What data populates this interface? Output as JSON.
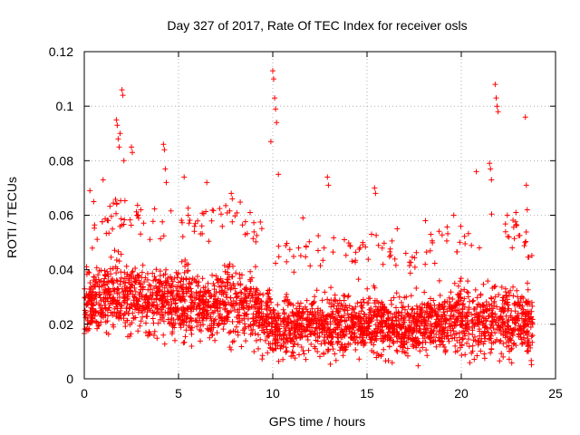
{
  "chart_data": {
    "type": "scatter",
    "title": "Day 327 of 2017, Rate Of TEC Index for receiver osls",
    "xlabel": "GPS time / hours",
    "ylabel": "ROTI / TECUs",
    "xlim": [
      0,
      25
    ],
    "ylim": [
      0,
      0.12
    ],
    "xticks": [
      0,
      5,
      10,
      15,
      20,
      25
    ],
    "yticks": [
      0,
      0.02,
      0.04,
      0.06,
      0.08,
      0.1,
      0.12
    ],
    "xtick_labels": [
      "0",
      "5",
      "10",
      "15",
      "20",
      "25"
    ],
    "ytick_labels": [
      "0",
      "0.02",
      "0.04",
      "0.06",
      "0.08",
      "0.1",
      "0.12"
    ],
    "grid": true,
    "marker": "+",
    "color": "#ff0000",
    "series": [
      {
        "name": "ROTI",
        "outliers": [
          [
            1.7,
            0.095
          ],
          [
            1.75,
            0.093
          ],
          [
            1.8,
            0.088
          ],
          [
            1.85,
            0.085
          ],
          [
            1.9,
            0.09
          ],
          [
            2.0,
            0.106
          ],
          [
            2.05,
            0.104
          ],
          [
            2.1,
            0.08
          ],
          [
            2.5,
            0.085
          ],
          [
            2.55,
            0.083
          ],
          [
            4.2,
            0.086
          ],
          [
            4.25,
            0.084
          ],
          [
            4.3,
            0.077
          ],
          [
            4.35,
            0.072
          ],
          [
            5.3,
            0.074
          ],
          [
            6.5,
            0.072
          ],
          [
            7.8,
            0.068
          ],
          [
            7.85,
            0.066
          ],
          [
            9.9,
            0.087
          ],
          [
            10.0,
            0.113
          ],
          [
            10.05,
            0.11
          ],
          [
            10.1,
            0.103
          ],
          [
            10.15,
            0.099
          ],
          [
            10.2,
            0.094
          ],
          [
            10.3,
            0.075
          ],
          [
            12.9,
            0.074
          ],
          [
            12.95,
            0.071
          ],
          [
            15.4,
            0.07
          ],
          [
            15.45,
            0.068
          ],
          [
            20.8,
            0.076
          ],
          [
            21.5,
            0.079
          ],
          [
            21.55,
            0.077
          ],
          [
            21.6,
            0.073
          ],
          [
            21.8,
            0.108
          ],
          [
            21.85,
            0.103
          ],
          [
            21.9,
            0.1
          ],
          [
            21.95,
            0.098
          ],
          [
            23.4,
            0.096
          ],
          [
            23.45,
            0.071
          ],
          [
            1.0,
            0.073
          ],
          [
            0.3,
            0.069
          ],
          [
            0.5,
            0.065
          ],
          [
            3.0,
            0.062
          ],
          [
            8.8,
            0.061
          ],
          [
            11.6,
            0.059
          ],
          [
            16.6,
            0.055
          ],
          [
            18.1,
            0.058
          ],
          [
            19.6,
            0.06
          ],
          [
            22.9,
            0.061
          ],
          [
            23.5,
            0.062
          ]
        ],
        "envelope": {
          "hours": [
            0,
            1,
            2,
            3,
            4,
            5,
            6,
            7,
            8,
            9,
            10,
            11,
            12,
            13,
            14,
            15,
            16,
            17,
            18,
            19,
            20,
            21,
            22,
            23,
            23.8
          ],
          "low": [
            0.012,
            0.014,
            0.013,
            0.014,
            0.013,
            0.012,
            0.013,
            0.012,
            0.013,
            0.012,
            0.006,
            0.008,
            0.008,
            0.009,
            0.008,
            0.008,
            0.008,
            0.008,
            0.008,
            0.008,
            0.008,
            0.009,
            0.008,
            0.008,
            0.008
          ],
          "high": [
            0.046,
            0.05,
            0.056,
            0.052,
            0.05,
            0.052,
            0.05,
            0.05,
            0.055,
            0.05,
            0.04,
            0.038,
            0.04,
            0.042,
            0.042,
            0.044,
            0.04,
            0.038,
            0.04,
            0.044,
            0.046,
            0.048,
            0.052,
            0.046,
            0.042
          ],
          "center": [
            0.027,
            0.03,
            0.031,
            0.029,
            0.028,
            0.028,
            0.027,
            0.026,
            0.027,
            0.026,
            0.019,
            0.019,
            0.02,
            0.02,
            0.02,
            0.021,
            0.02,
            0.019,
            0.02,
            0.021,
            0.022,
            0.022,
            0.023,
            0.021,
            0.019
          ],
          "points_per_hour": 130
        }
      }
    ]
  }
}
